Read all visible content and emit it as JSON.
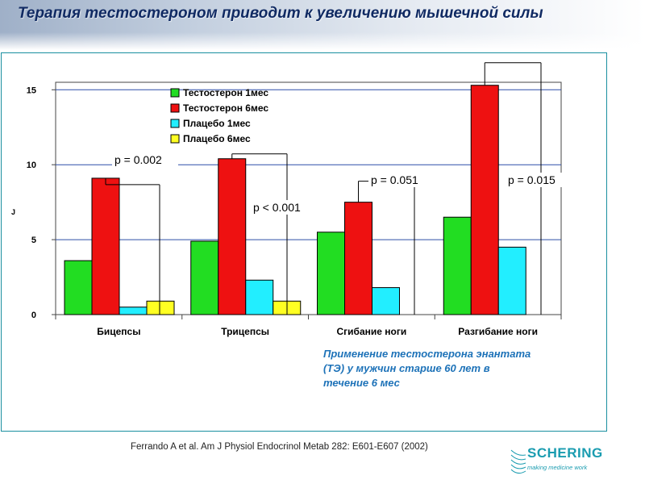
{
  "slide": {
    "title": "Терапия тестостероном приводит к увеличению мышечной силы",
    "caption_lines": [
      "Применение тестостерона энантата",
      "(ТЭ) у мужчин старше 60 лет в",
      "течение 6 мес"
    ],
    "citation": "Ferrando A et al. Am J Physiol Endocrinol Metab 282: E601-E607 (2002)",
    "logo": {
      "name": "SCHERING",
      "tagline": "making medicine work",
      "color": "#1a9cb0"
    }
  },
  "chart_data": {
    "type": "bar",
    "categories": [
      "Бицепсы",
      "Трицепсы",
      "Сгибание ноги",
      "Разгибание ноги"
    ],
    "series": [
      {
        "name": "Тестостерон 1мес",
        "color": "#22dd22",
        "values": [
          3.6,
          4.9,
          5.5,
          6.5
        ]
      },
      {
        "name": "Тестостерон 6мес",
        "color": "#ee1111",
        "values": [
          9.1,
          10.4,
          7.5,
          15.3
        ]
      },
      {
        "name": "Плацебо 1мес",
        "color": "#22eeff",
        "values": [
          0.5,
          2.3,
          1.8,
          4.5
        ]
      },
      {
        "name": "Плацебо 6мес",
        "color": "#ffff22",
        "values": [
          0.9,
          0.9,
          null,
          null
        ]
      }
    ],
    "ylabel": "J",
    "ylim": [
      0,
      15.5
    ],
    "yticks": [
      0,
      5,
      10,
      15
    ],
    "grid": true,
    "legend": "top-left",
    "annotations": [
      {
        "category": 0,
        "text": "p = 0.002",
        "brackets": 0
      },
      {
        "category": 1,
        "text": "p < 0.001",
        "brackets": 1
      },
      {
        "category": 2,
        "text": "p = 0.051",
        "brackets": 2
      },
      {
        "category": 3,
        "text": "p = 0.015",
        "brackets": 3
      }
    ]
  }
}
